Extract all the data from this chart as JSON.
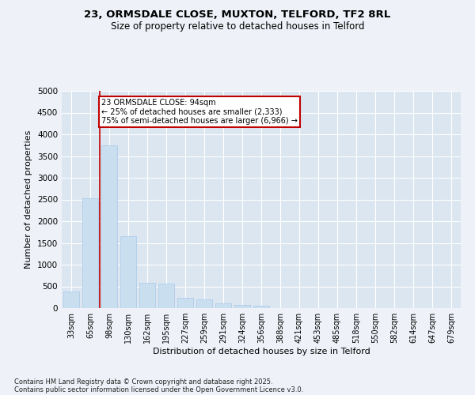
{
  "title1": "23, ORMSDALE CLOSE, MUXTON, TELFORD, TF2 8RL",
  "title2": "Size of property relative to detached houses in Telford",
  "xlabel": "Distribution of detached houses by size in Telford",
  "ylabel": "Number of detached properties",
  "categories": [
    "33sqm",
    "65sqm",
    "98sqm",
    "130sqm",
    "162sqm",
    "195sqm",
    "227sqm",
    "259sqm",
    "291sqm",
    "324sqm",
    "356sqm",
    "388sqm",
    "421sqm",
    "453sqm",
    "485sqm",
    "518sqm",
    "550sqm",
    "582sqm",
    "614sqm",
    "647sqm",
    "679sqm"
  ],
  "values": [
    380,
    2530,
    3750,
    1650,
    580,
    560,
    230,
    200,
    110,
    70,
    50,
    0,
    0,
    0,
    0,
    0,
    0,
    0,
    0,
    0,
    0
  ],
  "bar_color": "#c9dff0",
  "bar_edge_color": "#a8c8e8",
  "vline_color": "#c00000",
  "annotation_text": "23 ORMSDALE CLOSE: 94sqm\n← 25% of detached houses are smaller (2,333)\n75% of semi-detached houses are larger (6,966) →",
  "annotation_box_color": "#ffffff",
  "annotation_box_edge": "#c00000",
  "ylim_max": 5000,
  "yticks": [
    0,
    500,
    1000,
    1500,
    2000,
    2500,
    3000,
    3500,
    4000,
    4500,
    5000
  ],
  "bg_color": "#eef2f8",
  "plot_bg": "#dce6f1",
  "grid_color": "#ffffff",
  "footer1": "Contains HM Land Registry data © Crown copyright and database right 2025.",
  "footer2": "Contains public sector information licensed under the Open Government Licence v3.0."
}
